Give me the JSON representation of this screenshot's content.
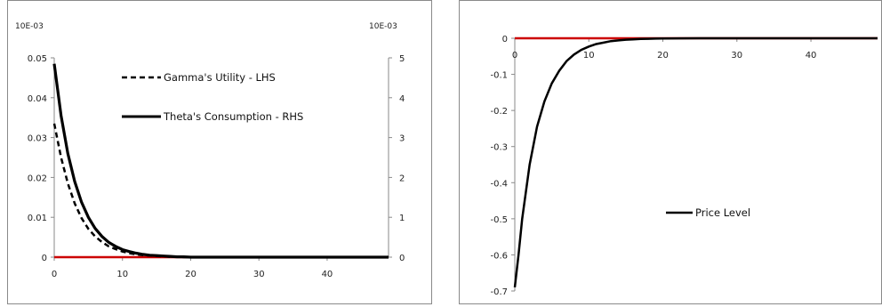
{
  "chart_data": [
    {
      "type": "line",
      "unit_label_left": "10E-03",
      "unit_label_right": "10E-03",
      "x_ticks": [
        "0",
        "10",
        "20",
        "30",
        "40"
      ],
      "xlim": [
        0,
        49
      ],
      "y_left_ticks": [
        "0.05",
        "0.04",
        "0.03",
        "0.02",
        "0.01",
        "0"
      ],
      "y_left_lim": [
        0,
        0.05
      ],
      "y_right_ticks": [
        "5",
        "4",
        "3",
        "2",
        "1",
        "0"
      ],
      "y_right_lim": [
        0,
        5
      ],
      "grid": false,
      "legend_position": "top-center",
      "series": [
        {
          "name": "Gamma's Utility - LHS",
          "axis": "left",
          "style": "dashed",
          "color": "#000000",
          "x": [
            0,
            1,
            2,
            3,
            4,
            5,
            6,
            7,
            8,
            9,
            10,
            11,
            12,
            13,
            14,
            15,
            16,
            17,
            18,
            19,
            20,
            25,
            30,
            35,
            40,
            45,
            49
          ],
          "y": [
            0.0335,
            0.025,
            0.0185,
            0.0135,
            0.0098,
            0.0071,
            0.0052,
            0.0038,
            0.0027,
            0.002,
            0.0014,
            0.001,
            0.0007,
            0.0005,
            0.0004,
            0.0003,
            0.0002,
            0.0001,
            0.0001,
            0,
            0,
            0,
            0,
            0,
            0,
            0,
            0
          ]
        },
        {
          "name": "Theta's Consumption - RHS",
          "axis": "right",
          "style": "solid",
          "color": "#000000",
          "x": [
            0,
            1,
            2,
            3,
            4,
            5,
            6,
            7,
            8,
            9,
            10,
            11,
            12,
            13,
            14,
            15,
            16,
            17,
            18,
            19,
            20,
            25,
            30,
            35,
            40,
            45,
            49
          ],
          "y": [
            4.85,
            3.55,
            2.6,
            1.9,
            1.38,
            1.0,
            0.72,
            0.52,
            0.37,
            0.27,
            0.19,
            0.14,
            0.1,
            0.07,
            0.05,
            0.04,
            0.03,
            0.02,
            0.01,
            0.01,
            0,
            0,
            0,
            0,
            0,
            0,
            0
          ]
        }
      ],
      "zero_line_color": "#cc0000"
    },
    {
      "type": "line",
      "x_ticks": [
        "0",
        "10",
        "20",
        "30",
        "40"
      ],
      "xlim": [
        0,
        49
      ],
      "y_ticks": [
        "0",
        "-0.1",
        "-0.2",
        "-0.3",
        "-0.4",
        "-0.5",
        "-0.6",
        "-0.7"
      ],
      "ylim": [
        -0.7,
        0
      ],
      "grid": false,
      "legend_position": "center-right",
      "series": [
        {
          "name": "Price Level",
          "style": "solid",
          "color": "#000000",
          "x": [
            0,
            0.5,
            1,
            2,
            3,
            4,
            5,
            6,
            7,
            8,
            9,
            10,
            11,
            12,
            13,
            14,
            15,
            16,
            17,
            18,
            19,
            20,
            25,
            30,
            35,
            40,
            45,
            49
          ],
          "y": [
            -0.69,
            -0.6,
            -0.5,
            -0.35,
            -0.245,
            -0.175,
            -0.125,
            -0.09,
            -0.063,
            -0.045,
            -0.032,
            -0.023,
            -0.016,
            -0.012,
            -0.008,
            -0.006,
            -0.004,
            -0.003,
            -0.002,
            -0.0015,
            -0.001,
            -0.0005,
            0,
            0,
            0,
            0,
            0,
            0
          ]
        }
      ],
      "zero_line_color": "#cc0000"
    }
  ]
}
